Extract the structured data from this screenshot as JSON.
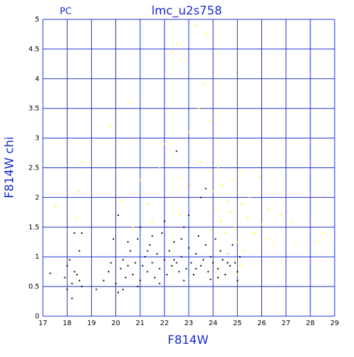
{
  "chart_data": {
    "type": "scatter",
    "title": "lmc_u2s758",
    "annotation": "PC",
    "x_label": "F814W",
    "y_label": "F814W chi",
    "xlim": [
      17,
      29
    ],
    "xticks": [
      17,
      18,
      19,
      20,
      21,
      22,
      23,
      24,
      25,
      26,
      27,
      28,
      29
    ],
    "ylim": [
      0,
      5
    ],
    "yticks": [
      0,
      0.5,
      1,
      1.5,
      2,
      2.5,
      3,
      3.5,
      4,
      4.5,
      5
    ],
    "grid": true,
    "grid_color": "#1a2ccc",
    "text_color": "#1a2ccc",
    "series": [
      {
        "color": "#000000",
        "x": [
          17.3,
          17.9,
          18.0,
          18.1,
          18.2,
          18.3,
          18.2,
          18.4,
          18.5,
          18.6,
          18.3,
          18.6,
          18.0,
          18.5,
          19.2,
          19.5,
          19.7,
          19.8,
          20.0,
          20.1,
          20.2,
          20.3,
          20.4,
          20.5,
          20.6,
          20.7,
          20.8,
          20.9,
          21.0,
          21.1,
          21.2,
          21.3,
          21.4,
          21.5,
          21.6,
          21.7,
          21.8,
          21.9,
          22.0,
          22.1,
          22.2,
          22.3,
          22.4,
          22.5,
          22.6,
          22.7,
          22.8,
          22.9,
          23.0,
          23.1,
          23.2,
          23.3,
          23.4,
          23.5,
          23.6,
          23.7,
          23.8,
          23.9,
          24.0,
          24.1,
          24.2,
          24.3,
          24.4,
          24.5,
          24.6,
          24.7,
          24.8,
          24.9,
          25.0,
          25.1,
          25.0,
          20.5,
          21.0,
          21.5,
          22.0,
          23.0,
          23.5,
          22.5,
          23.7,
          21.8,
          22.8,
          23.9,
          20.9,
          22.4,
          23.3,
          24.2,
          21.3,
          22.7,
          24.6,
          20.3,
          19.9,
          20.1
        ],
        "values": [
          0.72,
          0.65,
          0.45,
          0.95,
          0.55,
          0.75,
          0.3,
          0.7,
          0.6,
          0.5,
          1.4,
          1.4,
          0.85,
          1.1,
          0.45,
          0.6,
          0.75,
          0.9,
          0.55,
          0.4,
          0.8,
          0.95,
          0.65,
          0.85,
          1.1,
          0.7,
          0.9,
          1.3,
          0.6,
          0.85,
          1.0,
          0.75,
          1.2,
          0.9,
          0.65,
          1.05,
          0.8,
          1.4,
          0.95,
          0.7,
          1.1,
          0.85,
          1.25,
          0.9,
          0.75,
          1.0,
          1.5,
          0.8,
          1.15,
          0.9,
          0.7,
          1.05,
          1.35,
          0.85,
          0.95,
          1.2,
          0.75,
          1.0,
          0.9,
          1.3,
          0.8,
          1.1,
          0.95,
          0.7,
          1.05,
          0.85,
          1.2,
          0.9,
          0.75,
          1.0,
          0.6,
          1.25,
          1.5,
          1.35,
          1.6,
          1.7,
          2.0,
          2.78,
          2.15,
          0.55,
          0.6,
          0.62,
          0.5,
          0.95,
          0.8,
          0.65,
          1.1,
          1.3,
          0.9,
          0.45,
          1.3,
          1.7
        ]
      },
      {
        "color": "#ffff00",
        "x": [
          17.5,
          18.4,
          18.6,
          18.5,
          19.8,
          20.2,
          20.5,
          20.7,
          21.0,
          21.3,
          21.5,
          21.8,
          22.0,
          22.3,
          22.5,
          22.7,
          22.9,
          23.0,
          23.1,
          23.3,
          23.4,
          23.5,
          23.6,
          23.7,
          23.8,
          23.9,
          24.0,
          24.1,
          24.2,
          24.3,
          24.4,
          24.5,
          24.6,
          24.7,
          24.8,
          24.9,
          25.0,
          25.1,
          25.2,
          25.4,
          25.5,
          25.7,
          25.9,
          26.0,
          26.2,
          26.5,
          26.8,
          27.2,
          27.4,
          28.2,
          28.3,
          28.5,
          26.3,
          25.3,
          24.9,
          25.1,
          24.6,
          25.0,
          23.9,
          22.6
        ],
        "values": [
          1.85,
          1.65,
          2.6,
          2.1,
          3.2,
          1.95,
          3.6,
          1.5,
          2.3,
          1.9,
          1.6,
          2.5,
          2.9,
          4.45,
          4.6,
          2.35,
          4.3,
          3.1,
          2.2,
          4.9,
          3.5,
          2.6,
          3.9,
          4.75,
          2.45,
          3.3,
          2.1,
          1.8,
          2.5,
          1.6,
          2.2,
          1.4,
          1.95,
          1.75,
          2.3,
          1.5,
          1.25,
          2.45,
          1.9,
          1.65,
          2.0,
          1.4,
          2.35,
          1.55,
          1.3,
          1.2,
          1.7,
          1.6,
          1.2,
          1.55,
          1.25,
          1.4,
          1.8,
          1.1,
          0.95,
          0.85,
          1.05,
          0.7,
          1.45,
          1.7
        ]
      }
    ]
  }
}
